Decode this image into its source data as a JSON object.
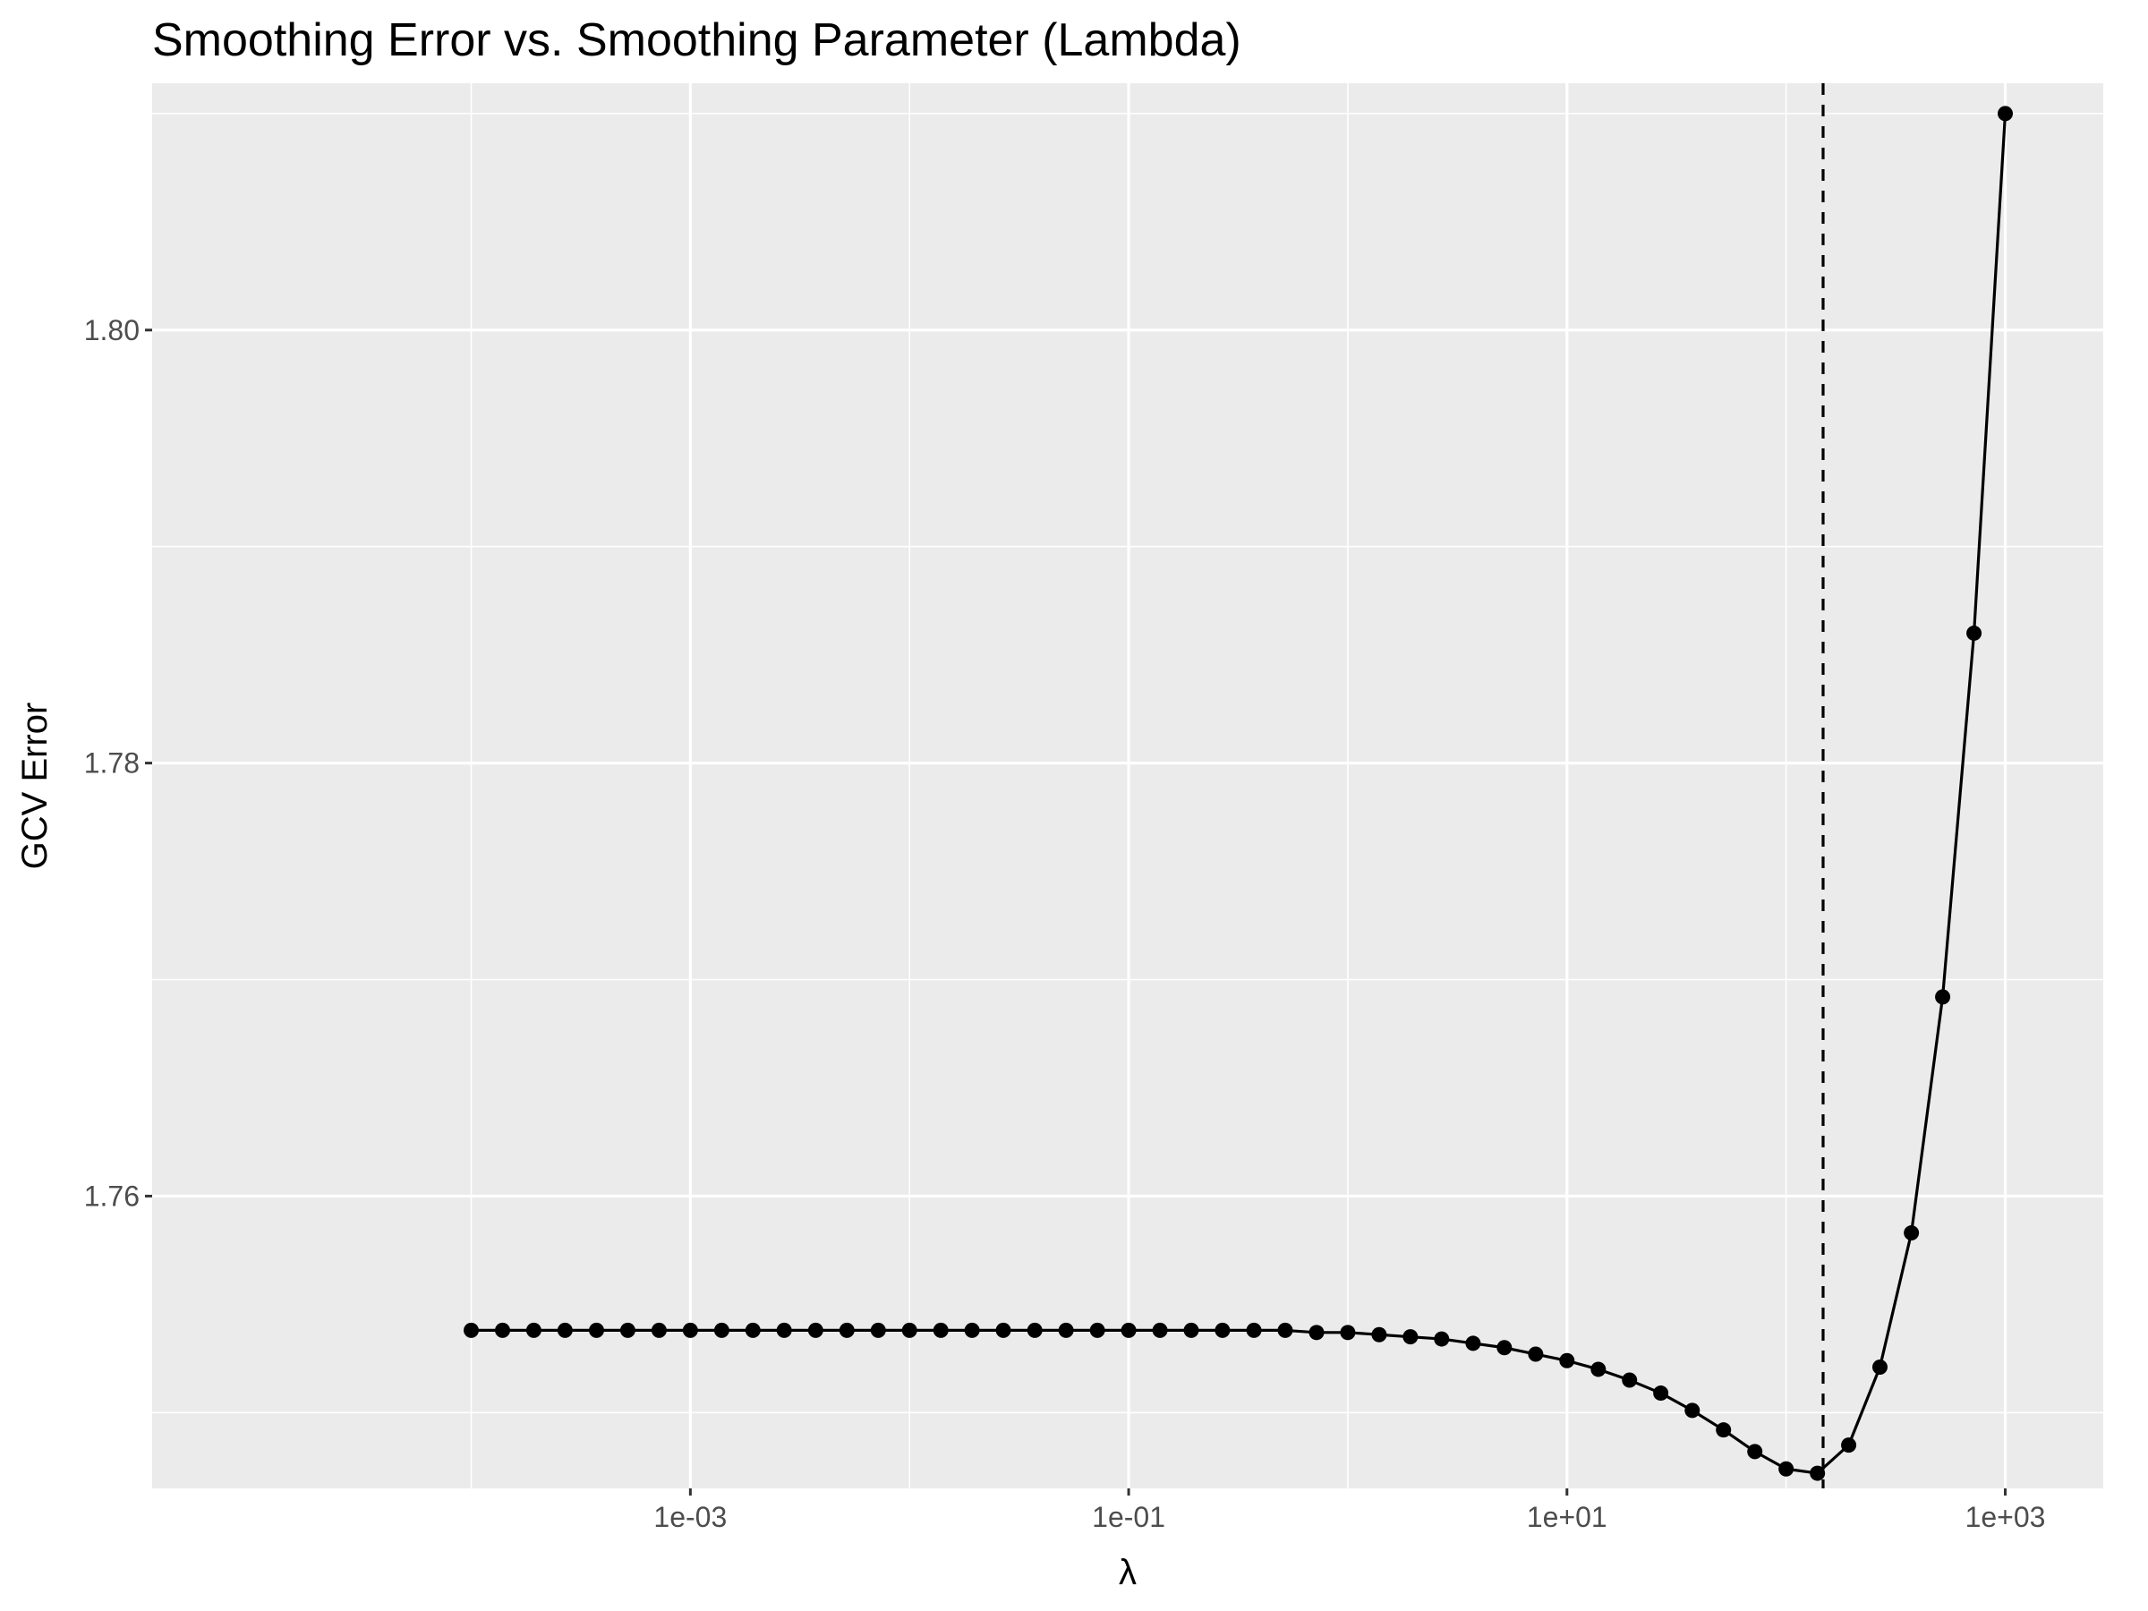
{
  "chart_data": {
    "type": "line",
    "title": "Smoothing Error vs. Smoothing Parameter (Lambda)",
    "xlabel": "λ",
    "ylabel": "GCV Error",
    "x_scale": "log10",
    "xlim": [
      3.5e-06,
      2800
    ],
    "ylim": [
      1.7465,
      1.8114
    ],
    "x_ticks": [
      0.001,
      0.1,
      10,
      1000
    ],
    "x_tick_labels": [
      "1e-03",
      "1e-01",
      "1e+01",
      "1e+03"
    ],
    "y_ticks": [
      1.76,
      1.78,
      1.8
    ],
    "y_tick_labels": [
      "1.76",
      "1.78",
      "1.80"
    ],
    "grid": true,
    "legend": "none",
    "vline": {
      "x": 147.5,
      "style": "dashed"
    },
    "colors": {
      "panel": "#ebebeb",
      "grid": "#ffffff",
      "line": "#000000",
      "text": "#4d4d4d"
    },
    "series": [
      {
        "x": [
          0.0001,
          0.000139,
          0.000193,
          0.000268,
          0.000373,
          0.000518,
          0.00072,
          0.001,
          0.00139,
          0.00193,
          0.00268,
          0.00373,
          0.00518,
          0.0072,
          0.01,
          0.0139,
          0.0193,
          0.0268,
          0.0373,
          0.0518,
          0.072,
          0.1,
          0.139,
          0.193,
          0.268,
          0.373,
          0.518,
          0.72,
          1,
          1.39,
          1.93,
          2.68,
          3.73,
          5.18,
          7.2,
          10,
          13.9,
          19.3,
          26.8,
          37.3,
          51.8,
          72,
          100,
          139,
          193,
          268,
          373,
          518,
          720,
          1000
        ],
        "y": [
          1.7538,
          1.7538,
          1.7538,
          1.7538,
          1.7538,
          1.7538,
          1.7538,
          1.7538,
          1.7538,
          1.7538,
          1.7538,
          1.7538,
          1.7538,
          1.7538,
          1.7538,
          1.7538,
          1.7538,
          1.7538,
          1.7538,
          1.7538,
          1.7538,
          1.7538,
          1.7538,
          1.7538,
          1.7538,
          1.7538,
          1.7538,
          1.7537,
          1.7537,
          1.7536,
          1.7535,
          1.7534,
          1.7532,
          1.753,
          1.7527,
          1.7524,
          1.752,
          1.7515,
          1.7509,
          1.7501,
          1.7492,
          1.7482,
          1.7474,
          1.7472,
          1.7485,
          1.7521,
          1.7583,
          1.7692,
          1.786,
          1.81
        ]
      }
    ]
  }
}
